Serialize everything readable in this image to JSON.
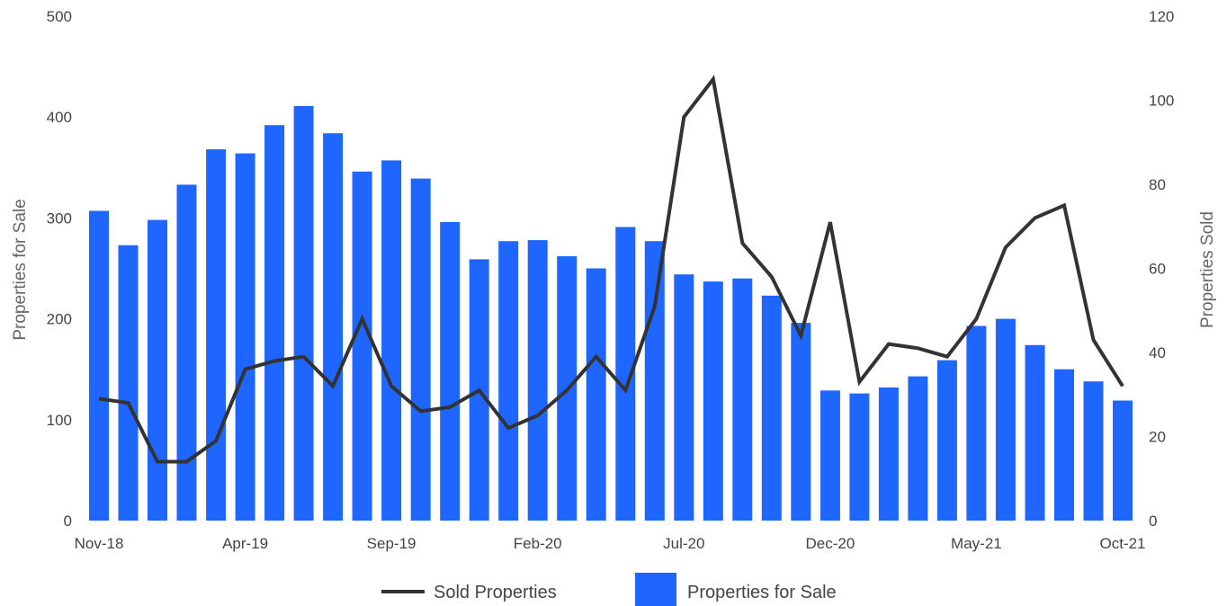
{
  "chart_data": {
    "type": "bar",
    "categories": [
      "Nov-18",
      "Dec-18",
      "Jan-19",
      "Feb-19",
      "Mar-19",
      "Apr-19",
      "May-19",
      "Jun-19",
      "Jul-19",
      "Aug-19",
      "Sep-19",
      "Oct-19",
      "Nov-19",
      "Dec-19",
      "Jan-20",
      "Feb-20",
      "Mar-20",
      "Apr-20",
      "May-20",
      "Jun-20",
      "Jul-20",
      "Aug-20",
      "Sep-20",
      "Oct-20",
      "Nov-20",
      "Dec-20",
      "Jan-21",
      "Feb-21",
      "Mar-21",
      "Apr-21",
      "May-21",
      "Jun-21",
      "Jul-21",
      "Aug-21",
      "Sep-21",
      "Oct-21"
    ],
    "x_tick_labels": [
      "Nov-18",
      "Apr-19",
      "Sep-19",
      "Feb-20",
      "Jul-20",
      "Dec-20",
      "May-21",
      "Oct-21"
    ],
    "series": [
      {
        "name": "Properties for Sale",
        "type": "bar",
        "axis": "left",
        "color": "#1f66ff",
        "values": [
          307,
          273,
          298,
          333,
          368,
          364,
          392,
          411,
          384,
          346,
          357,
          339,
          296,
          259,
          277,
          278,
          262,
          250,
          291,
          277,
          244,
          237,
          240,
          223,
          196,
          129,
          126,
          132,
          143,
          159,
          193,
          200,
          174,
          150,
          138,
          119
        ]
      },
      {
        "name": "Sold Properties",
        "type": "line",
        "axis": "right",
        "color": "#333333",
        "values": [
          29,
          28,
          14,
          14,
          19,
          36,
          38,
          39,
          32,
          48,
          32,
          26,
          27,
          31,
          22,
          25,
          31,
          39,
          31,
          51,
          96,
          105,
          66,
          58,
          44,
          71,
          33,
          42,
          41,
          39,
          48,
          65,
          72,
          75,
          43,
          32
        ]
      }
    ],
    "ylabel_left": "Properties for Sale",
    "ylabel_right": "Properties Sold",
    "ylim_left": [
      0,
      500
    ],
    "ylim_right": [
      0,
      120
    ],
    "yticks_left": [
      0,
      100,
      200,
      300,
      400,
      500
    ],
    "yticks_right": [
      0,
      20,
      40,
      60,
      80,
      100,
      120
    ],
    "grid": false,
    "legend_position": "bottom"
  }
}
